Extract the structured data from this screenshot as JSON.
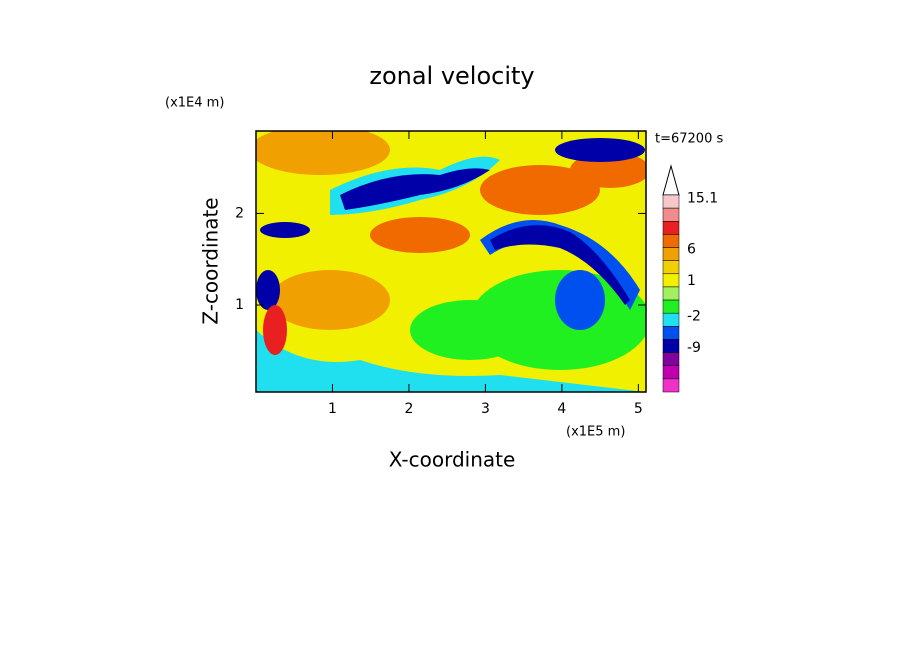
{
  "chart_data": {
    "type": "contour",
    "title": "zonal velocity",
    "x_label": "X-coordinate",
    "y_label": "Z-coordinate",
    "x_unit": "(x1E5 m)",
    "y_unit": "(x1E4 m)",
    "time_label": "t=67200 s",
    "xlim": [
      0,
      5.1
    ],
    "xticks": [
      1,
      2,
      3,
      4,
      5
    ],
    "ylim": [
      0.05,
      2.9
    ],
    "yticks": [
      1,
      2
    ],
    "colorbar": {
      "colors": [
        "#f8c8c8",
        "#f08c8c",
        "#e82020",
        "#f06a00",
        "#f0a000",
        "#f0d000",
        "#f0f000",
        "#a0f060",
        "#20f020",
        "#20e0f0",
        "#0050f0",
        "#0000a8",
        "#8000a0",
        "#c000b0",
        "#f030c8"
      ],
      "ticks": [
        15.1,
        6,
        1,
        -2,
        -9
      ]
    }
  }
}
